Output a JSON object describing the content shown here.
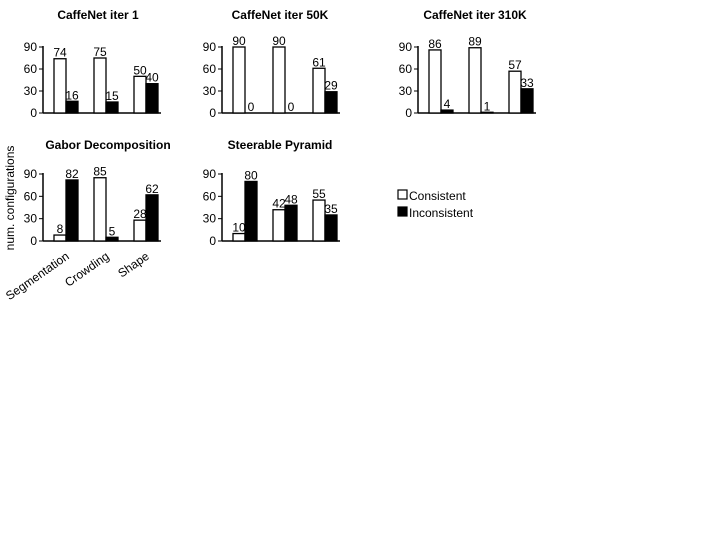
{
  "figure": {
    "ylabel": "num. configurations",
    "legend": {
      "placement": "right",
      "items": [
        {
          "label": "Consistent",
          "fill": "#ffffff"
        },
        {
          "label": "Inconsistent",
          "fill": "#000000"
        }
      ]
    }
  },
  "chart_data": [
    {
      "type": "bar",
      "title": "CaffeNet iter 1",
      "categories": [
        "Segmentation",
        "Crowding",
        "Shape"
      ],
      "show_category_labels": false,
      "series": [
        {
          "name": "Consistent",
          "values": [
            74,
            75,
            50
          ]
        },
        {
          "name": "Inconsistent",
          "values": [
            16,
            15,
            40
          ]
        }
      ],
      "ylim": [
        0,
        90
      ],
      "yticks": [
        "0",
        "30",
        "60",
        "90"
      ],
      "grid": false
    },
    {
      "type": "bar",
      "title": "CaffeNet iter 50K",
      "categories": [
        "Segmentation",
        "Crowding",
        "Shape"
      ],
      "show_category_labels": false,
      "series": [
        {
          "name": "Consistent",
          "values": [
            90,
            90,
            61
          ]
        },
        {
          "name": "Inconsistent",
          "values": [
            0,
            0,
            29
          ]
        }
      ],
      "ylim": [
        0,
        90
      ],
      "yticks": [
        "0",
        "30",
        "60",
        "90"
      ],
      "grid": false
    },
    {
      "type": "bar",
      "title": "CaffeNet iter 310K",
      "categories": [
        "Segmentation",
        "Crowding",
        "Shape"
      ],
      "show_category_labels": false,
      "series": [
        {
          "name": "Consistent",
          "values": [
            86,
            89,
            57
          ]
        },
        {
          "name": "Inconsistent",
          "values": [
            4,
            1,
            33
          ]
        }
      ],
      "ylim": [
        0,
        90
      ],
      "yticks": [
        "0",
        "30",
        "60",
        "90"
      ],
      "grid": false
    },
    {
      "type": "bar",
      "title": "Gabor Decomposition",
      "categories": [
        "Segmentation",
        "Crowding",
        "Shape"
      ],
      "show_category_labels": true,
      "series": [
        {
          "name": "Consistent",
          "values": [
            8,
            85,
            28
          ]
        },
        {
          "name": "Inconsistent",
          "values": [
            82,
            5,
            62
          ]
        }
      ],
      "ylim": [
        0,
        90
      ],
      "yticks": [
        "0",
        "30",
        "60",
        "90"
      ],
      "grid": false
    },
    {
      "type": "bar",
      "title": "Steerable Pyramid",
      "categories": [
        "Segmentation",
        "Crowding",
        "Shape"
      ],
      "show_category_labels": false,
      "series": [
        {
          "name": "Consistent",
          "values": [
            10,
            42,
            55
          ]
        },
        {
          "name": "Inconsistent",
          "values": [
            80,
            48,
            35
          ]
        }
      ],
      "ylim": [
        0,
        90
      ],
      "yticks": [
        "0",
        "30",
        "60",
        "90"
      ],
      "grid": false
    }
  ]
}
